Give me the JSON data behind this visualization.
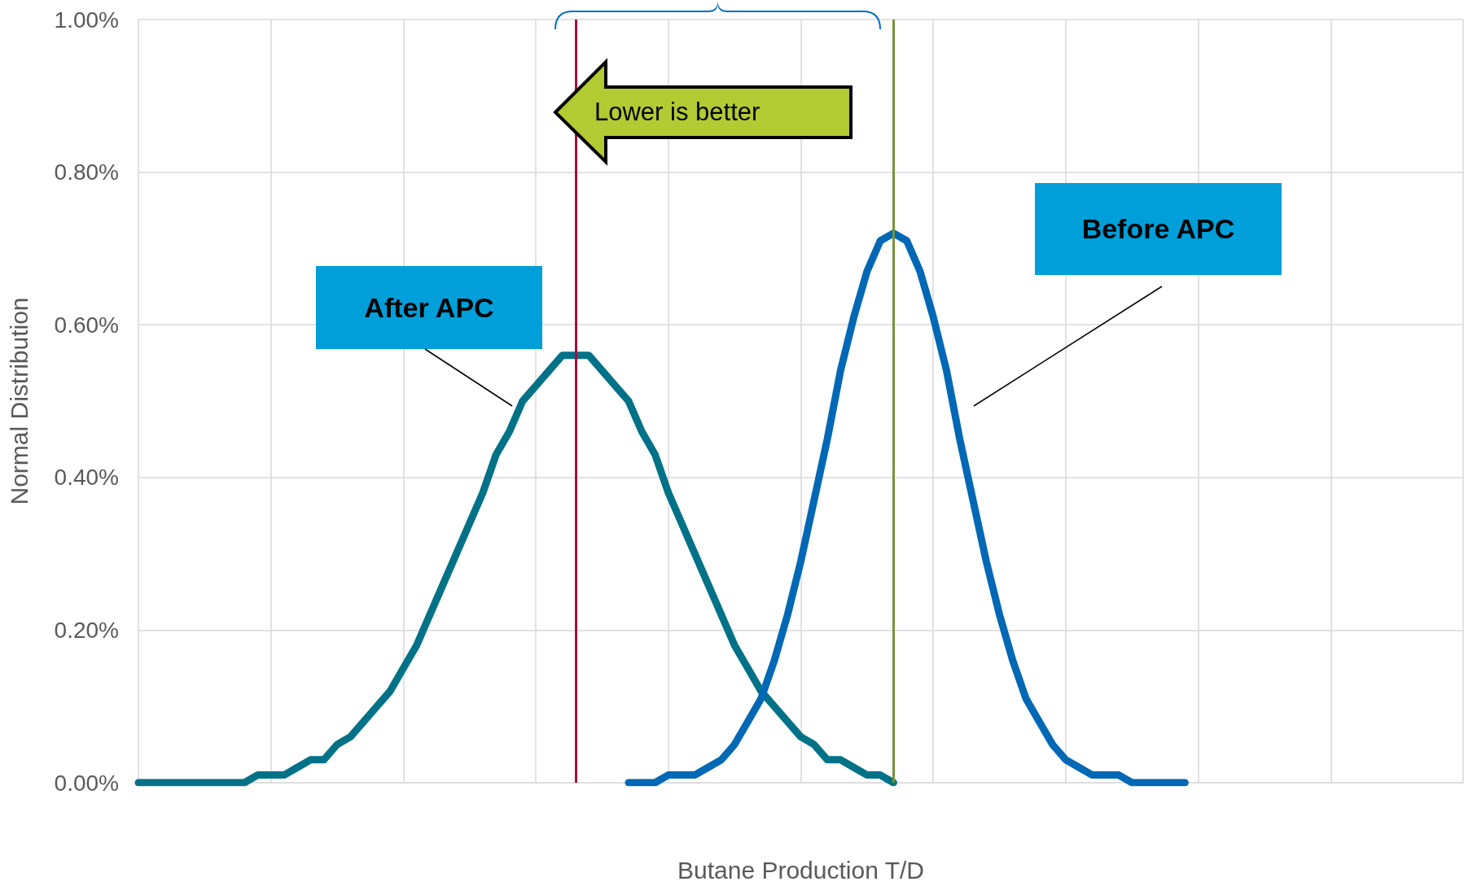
{
  "chart_data": {
    "type": "line",
    "xlabel": "Butane Production T/D",
    "ylabel": "Normal Distribution",
    "categories": [
      null,
      null,
      null,
      null,
      null,
      null,
      null,
      null,
      null,
      null,
      null,
      null,
      null,
      null,
      null,
      null,
      null,
      null,
      null,
      null,
      null,
      null,
      null,
      null,
      null,
      null,
      null,
      null,
      null,
      null,
      null,
      null,
      null,
      null,
      null,
      null,
      null,
      null,
      null,
      null,
      null,
      null,
      null,
      null,
      null,
      null,
      null,
      null,
      null,
      null,
      null,
      null,
      null,
      null,
      null,
      null,
      null,
      null,
      null,
      null,
      null,
      null,
      null,
      null,
      null,
      null,
      null,
      null,
      null,
      null,
      null,
      null,
      null,
      null,
      null,
      null,
      null,
      null,
      null,
      null,
      null,
      null,
      null,
      null,
      null,
      null,
      null,
      null,
      null,
      null,
      null,
      null,
      null,
      null,
      null,
      null,
      null,
      null,
      null,
      null,
      null
    ],
    "ylim": [
      0,
      1
    ],
    "yticks": [
      {
        "value": 0,
        "label": "0.00%"
      },
      {
        "value": 0.2,
        "label": "0.20%"
      },
      {
        "value": 0.4,
        "label": "0.40%"
      },
      {
        "value": 0.6,
        "label": "0.60%"
      },
      {
        "value": 0.8,
        "label": "0.80%"
      },
      {
        "value": 1,
        "label": "1.00%"
      }
    ],
    "tick_labels": "y",
    "grid": true,
    "marker": "none",
    "line_style": "solid",
    "series": [
      {
        "color": "#007287",
        "values": [
          0,
          0,
          0,
          0,
          0,
          0,
          0,
          0,
          0,
          0.01,
          0.01,
          0.01,
          0.02,
          0.03,
          0.03,
          0.05,
          0.06,
          0.08,
          0.1,
          0.12,
          0.15,
          0.18,
          0.22,
          0.26,
          0.3,
          0.34,
          0.38,
          0.43,
          0.46,
          0.5,
          0.52,
          0.54,
          0.56,
          0.56,
          0.56,
          0.54,
          0.52,
          0.5,
          0.46,
          0.43,
          0.38,
          0.34,
          0.3,
          0.26,
          0.22,
          0.18,
          0.15,
          0.12,
          0.1,
          0.08,
          0.06,
          0.05,
          0.03,
          0.03,
          0.02,
          0.01,
          0.01,
          0,
          null,
          null,
          null,
          null,
          null,
          null,
          null,
          null,
          null,
          null,
          null,
          null,
          null,
          null,
          null,
          null,
          null,
          null,
          null,
          null,
          null,
          null,
          null,
          null,
          null,
          null,
          null,
          null,
          null,
          null,
          null,
          null,
          null,
          null,
          null,
          null,
          null,
          null,
          null,
          null,
          null,
          null,
          null
        ]
      },
      {
        "color": "#0068b5",
        "values": [
          null,
          null,
          null,
          null,
          null,
          null,
          null,
          null,
          null,
          null,
          null,
          null,
          null,
          null,
          null,
          null,
          null,
          null,
          null,
          null,
          null,
          null,
          null,
          null,
          null,
          null,
          null,
          null,
          null,
          null,
          null,
          null,
          null,
          null,
          null,
          null,
          null,
          0,
          0,
          0,
          0.01,
          0.01,
          0.01,
          0.02,
          0.03,
          0.05,
          0.08,
          0.11,
          0.16,
          0.22,
          0.29,
          0.37,
          0.45,
          0.54,
          0.61,
          0.67,
          0.71,
          0.72,
          0.71,
          0.67,
          0.61,
          0.54,
          0.45,
          0.37,
          0.29,
          0.22,
          0.16,
          0.11,
          0.08,
          0.05,
          0.03,
          0.02,
          0.01,
          0.01,
          0.01,
          0,
          0,
          0,
          0,
          0,
          null,
          null,
          null,
          null,
          null,
          null,
          null,
          null,
          null,
          null,
          null,
          null,
          null,
          null,
          null,
          null,
          null,
          null,
          null,
          null,
          null
        ]
      }
    ],
    "annotations": [
      "After APC",
      "Before APC",
      "Lower is better"
    ]
  }
}
